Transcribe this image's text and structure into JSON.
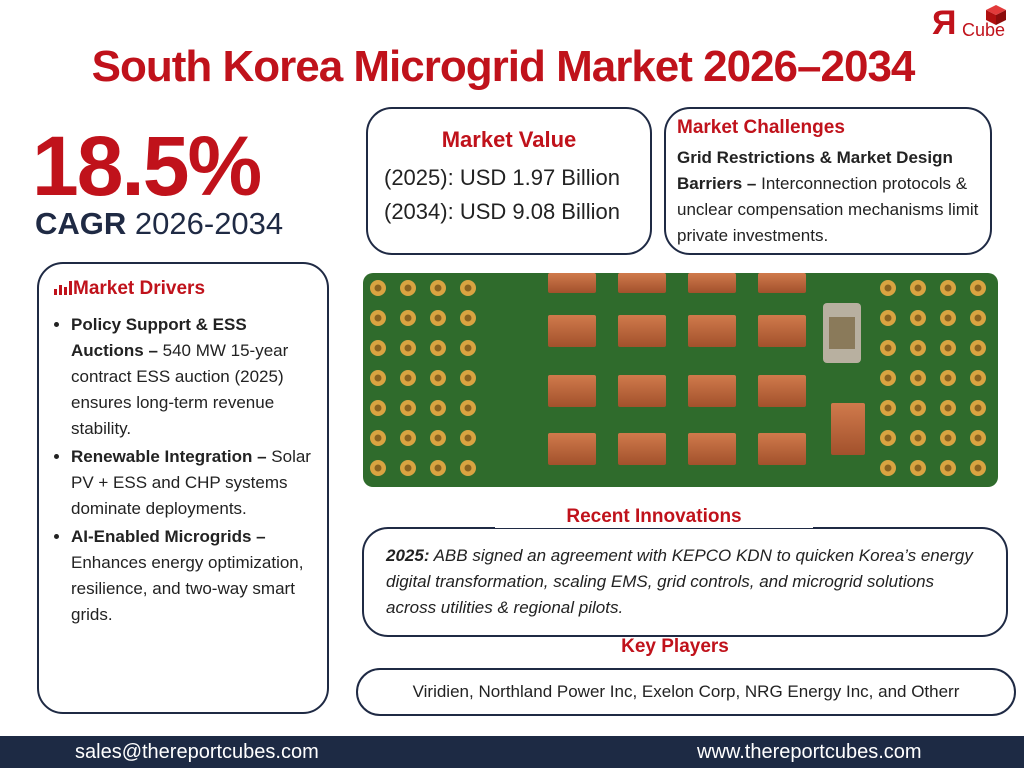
{
  "logo": {
    "mark": "Я",
    "text": "Cube"
  },
  "header": {
    "title": "South Korea Microgrid Market 2026–2034"
  },
  "cagr": {
    "value": "18.5%",
    "label": "CAGR",
    "period": "2026-2034"
  },
  "market_value": {
    "title": "Market Value",
    "lines": [
      "(2025): USD 1.97 Billion",
      "(2034): USD 9.08 Billion"
    ]
  },
  "challenges": {
    "title": "Market Challenges",
    "bold": "Grid Restrictions & Market Design Barriers –",
    "text": " Interconnection protocols & unclear compensation mechanisms limit private investments."
  },
  "drivers": {
    "title": "Market Drivers",
    "items": [
      {
        "bold": "Policy Support & ESS Auctions –",
        "text": " 540 MW 15-year contract ESS auction (2025) ensures long-term revenue stability."
      },
      {
        "bold": "Renewable Integration –",
        "text": " Solar PV + ESS and CHP systems dominate deployments."
      },
      {
        "bold": "AI-Enabled Microgrids –",
        "text": " Enhances energy optimization, resilience, and two-way smart grids."
      }
    ]
  },
  "innovations": {
    "title": "Recent Innovations",
    "bold": "2025:",
    "text": " ABB signed an agreement with KEPCO KDN to quicken Korea’s energy digital transformation, scaling EMS, grid controls, and microgrid solutions across utilities & regional pilots."
  },
  "key_players": {
    "title": "Key Players",
    "text": "Viridien, Northland Power Inc, Exelon Corp, NRG Energy Inc, and Otherr"
  },
  "footer": {
    "email": "sales@thereportcubes.com",
    "website": "www.thereportcubes.com"
  }
}
